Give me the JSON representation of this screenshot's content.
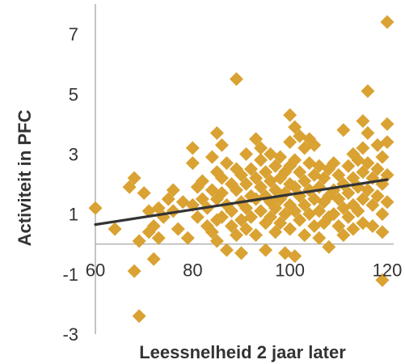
{
  "chart_data": {
    "type": "scatter",
    "xlabel": "Leessnelheid 2 jaar later",
    "ylabel": "Activiteit in PFC",
    "xlim": [
      60,
      120
    ],
    "ylim": [
      -3,
      8
    ],
    "x_ticks": [
      "60",
      "80",
      "100",
      "120"
    ],
    "y_ticks": [
      "7",
      "5",
      "3",
      "1",
      "-1",
      "-3"
    ],
    "grid": false,
    "marker": "diamond",
    "marker_color": "#D9A232",
    "trendline": {
      "color": "#333333",
      "x": [
        60,
        120
      ],
      "y": [
        0.65,
        2.15
      ]
    },
    "series": [
      {
        "points": [
          [
            60,
            1.2
          ],
          [
            64,
            0.5
          ],
          [
            67,
            1.9
          ],
          [
            68,
            2.2
          ],
          [
            68,
            -0.9
          ],
          [
            69,
            -2.4
          ],
          [
            69,
            0.1
          ],
          [
            70,
            1.7
          ],
          [
            71,
            0.4
          ],
          [
            71,
            1.1
          ],
          [
            72,
            -0.5
          ],
          [
            72,
            0.6
          ],
          [
            73,
            1.2
          ],
          [
            73,
            0.2
          ],
          [
            74,
            0.9
          ],
          [
            75,
            1.5
          ],
          [
            76,
            1.8
          ],
          [
            76,
            1.1
          ],
          [
            77,
            0.5
          ],
          [
            78,
            1.4
          ],
          [
            79,
            0.2
          ],
          [
            80,
            3.2
          ],
          [
            80,
            2.7
          ],
          [
            80,
            1.3
          ],
          [
            81,
            1.9
          ],
          [
            81,
            0.9
          ],
          [
            82,
            2.1
          ],
          [
            82,
            1.5
          ],
          [
            83,
            1.2
          ],
          [
            83,
            0.6
          ],
          [
            84,
            2.9
          ],
          [
            84,
            1.8
          ],
          [
            84,
            0.4
          ],
          [
            85,
            3.7
          ],
          [
            85,
            2.4
          ],
          [
            85,
            1.5
          ],
          [
            85,
            0.8
          ],
          [
            85,
            0.1
          ],
          [
            86,
            3.3
          ],
          [
            86,
            2.2
          ],
          [
            86,
            1.7
          ],
          [
            86,
            0.9
          ],
          [
            87,
            1.3
          ],
          [
            87,
            -0.2
          ],
          [
            87,
            2.7
          ],
          [
            88,
            2.0
          ],
          [
            88,
            1.1
          ],
          [
            88,
            0.6
          ],
          [
            89,
            2.5
          ],
          [
            89,
            1.8
          ],
          [
            89,
            5.5
          ],
          [
            89,
            0.3
          ],
          [
            90,
            2.3
          ],
          [
            90,
            1.4
          ],
          [
            90,
            0.8
          ],
          [
            90,
            -0.3
          ],
          [
            91,
            3.0
          ],
          [
            91,
            2.0
          ],
          [
            91,
            1.2
          ],
          [
            91,
            0.5
          ],
          [
            92,
            2.5
          ],
          [
            92,
            1.6
          ],
          [
            92,
            0.9
          ],
          [
            93,
            3.5
          ],
          [
            93,
            2.2
          ],
          [
            93,
            1.5
          ],
          [
            93,
            0.3
          ],
          [
            94,
            3.2
          ],
          [
            94,
            2.8
          ],
          [
            94,
            1.9
          ],
          [
            94,
            1.1
          ],
          [
            95,
            2.4
          ],
          [
            95,
            1.6
          ],
          [
            95,
            0.7
          ],
          [
            95,
            -0.2
          ],
          [
            96,
            3.0
          ],
          [
            96,
            2.1
          ],
          [
            96,
            1.4
          ],
          [
            96,
            0.9
          ],
          [
            97,
            2.6
          ],
          [
            97,
            1.8
          ],
          [
            97,
            1.2
          ],
          [
            97,
            0.4
          ],
          [
            98,
            2.9
          ],
          [
            98,
            2.2
          ],
          [
            98,
            1.5
          ],
          [
            98,
            0.7
          ],
          [
            99,
            2.4
          ],
          [
            99,
            1.7
          ],
          [
            99,
            1.0
          ],
          [
            99,
            -0.3
          ],
          [
            100,
            4.3
          ],
          [
            100,
            3.4
          ],
          [
            100,
            2.6
          ],
          [
            100,
            2.0
          ],
          [
            100,
            1.3
          ],
          [
            100,
            0.5
          ],
          [
            101,
            3.9
          ],
          [
            101,
            2.8
          ],
          [
            101,
            1.9
          ],
          [
            101,
            1.1
          ],
          [
            101,
            -0.4
          ],
          [
            102,
            3.6
          ],
          [
            102,
            2.4
          ],
          [
            102,
            1.6
          ],
          [
            102,
            0.8
          ],
          [
            103,
            3.2
          ],
          [
            103,
            2.1
          ],
          [
            103,
            1.3
          ],
          [
            103,
            0.3
          ],
          [
            104,
            3.5
          ],
          [
            104,
            2.7
          ],
          [
            104,
            1.8
          ],
          [
            104,
            1.0
          ],
          [
            105,
            3.3
          ],
          [
            105,
            2.3
          ],
          [
            105,
            1.5
          ],
          [
            105,
            0.6
          ],
          [
            106,
            2.6
          ],
          [
            106,
            1.9
          ],
          [
            106,
            1.1
          ],
          [
            106,
            0.2
          ],
          [
            107,
            2.2
          ],
          [
            107,
            1.4
          ],
          [
            107,
            0.7
          ],
          [
            108,
            2.5
          ],
          [
            108,
            1.6
          ],
          [
            108,
            0.9
          ],
          [
            108,
            -0.1
          ],
          [
            109,
            2.7
          ],
          [
            109,
            1.8
          ],
          [
            109,
            1.0
          ],
          [
            110,
            2.3
          ],
          [
            110,
            1.5
          ],
          [
            110,
            0.6
          ],
          [
            111,
            3.8
          ],
          [
            111,
            2.0
          ],
          [
            111,
            1.2
          ],
          [
            111,
            0.3
          ],
          [
            112,
            2.6
          ],
          [
            112,
            1.7
          ],
          [
            112,
            0.9
          ],
          [
            113,
            3.0
          ],
          [
            113,
            2.2
          ],
          [
            113,
            1.3
          ],
          [
            113,
            0.5
          ],
          [
            114,
            2.8
          ],
          [
            114,
            1.9
          ],
          [
            114,
            1.1
          ],
          [
            115,
            4.1
          ],
          [
            115,
            3.2
          ],
          [
            115,
            2.4
          ],
          [
            115,
            1.5
          ],
          [
            115,
            0.7
          ],
          [
            116,
            5.1
          ],
          [
            116,
            3.7
          ],
          [
            116,
            2.7
          ],
          [
            116,
            1.8
          ],
          [
            117,
            2.2
          ],
          [
            117,
            1.3
          ],
          [
            117,
            0.6
          ],
          [
            118,
            3.3
          ],
          [
            118,
            2.5
          ],
          [
            118,
            1.6
          ],
          [
            119,
            2.9
          ],
          [
            119,
            2.0
          ],
          [
            119,
            1.0
          ],
          [
            119,
            0.4
          ],
          [
            120,
            7.4
          ],
          [
            120,
            4.0
          ],
          [
            120,
            3.4
          ],
          [
            120,
            2.3
          ],
          [
            120,
            1.4
          ],
          [
            119,
            -1.2
          ]
        ]
      }
    ]
  }
}
